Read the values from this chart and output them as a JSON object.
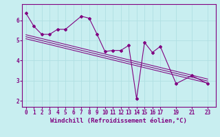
{
  "xlabel": "Windchill (Refroidissement éolien,°C)",
  "bg_color": "#c8eef0",
  "grid_color": "#b0dfe2",
  "line_color": "#800080",
  "spine_color": "#800080",
  "xlim": [
    -0.5,
    24.0
  ],
  "ylim": [
    1.7,
    6.8
  ],
  "xticks": [
    0,
    1,
    2,
    3,
    4,
    5,
    6,
    7,
    8,
    9,
    10,
    11,
    12,
    13,
    14,
    15,
    16,
    17,
    19,
    21,
    23
  ],
  "yticks": [
    2,
    3,
    4,
    5,
    6
  ],
  "data_x": [
    0,
    1,
    2,
    3,
    4,
    5,
    7,
    8,
    9,
    10,
    11,
    12,
    13,
    14,
    15,
    16,
    17,
    19,
    21,
    23
  ],
  "data_y": [
    6.35,
    5.7,
    5.3,
    5.3,
    5.55,
    5.55,
    6.2,
    6.1,
    5.3,
    4.45,
    4.5,
    4.5,
    4.75,
    2.1,
    4.9,
    4.4,
    4.7,
    2.85,
    3.25,
    2.85
  ],
  "trends": [
    {
      "x": [
        0,
        23
      ],
      "y": [
        5.28,
        3.08
      ]
    },
    {
      "x": [
        0,
        23
      ],
      "y": [
        5.18,
        2.98
      ]
    },
    {
      "x": [
        0,
        23
      ],
      "y": [
        5.08,
        2.88
      ]
    }
  ],
  "font_family": "monospace",
  "tick_fontsize": 5.5,
  "label_fontsize": 6.5
}
